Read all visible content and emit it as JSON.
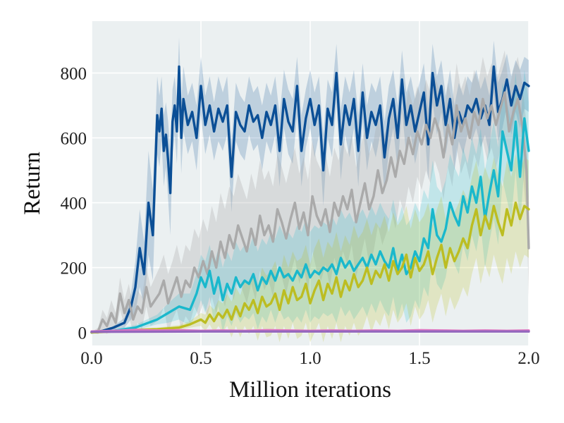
{
  "chart_data": {
    "type": "line",
    "title": "",
    "xlabel": "Million iterations",
    "ylabel": "Return",
    "xlim": [
      0.0,
      2.0
    ],
    "ylim": [
      -40,
      960
    ],
    "xticks": [
      0.0,
      0.5,
      1.0,
      1.5,
      2.0
    ],
    "xtick_labels": [
      "0.0",
      "0.5",
      "1.0",
      "1.5",
      "2.0"
    ],
    "yticks": [
      0,
      200,
      400,
      600,
      800
    ],
    "ytick_labels": [
      "0",
      "200",
      "400",
      "600",
      "800"
    ],
    "grid": true,
    "background": "#ebf0f1",
    "legend": "none",
    "series": [
      {
        "color": "#0b4f96",
        "band_opacity": 0.2,
        "x": [
          0.0,
          0.05,
          0.1,
          0.15,
          0.18,
          0.2,
          0.22,
          0.24,
          0.26,
          0.28,
          0.3,
          0.31,
          0.32,
          0.33,
          0.34,
          0.35,
          0.36,
          0.37,
          0.38,
          0.39,
          0.4,
          0.41,
          0.42,
          0.44,
          0.46,
          0.48,
          0.5,
          0.52,
          0.54,
          0.56,
          0.58,
          0.6,
          0.62,
          0.64,
          0.66,
          0.68,
          0.7,
          0.72,
          0.74,
          0.76,
          0.78,
          0.8,
          0.82,
          0.84,
          0.86,
          0.88,
          0.9,
          0.92,
          0.94,
          0.96,
          0.98,
          1.0,
          1.02,
          1.04,
          1.06,
          1.08,
          1.1,
          1.12,
          1.14,
          1.16,
          1.18,
          1.2,
          1.22,
          1.24,
          1.26,
          1.28,
          1.3,
          1.32,
          1.34,
          1.36,
          1.38,
          1.4,
          1.42,
          1.44,
          1.46,
          1.48,
          1.5,
          1.52,
          1.54,
          1.56,
          1.58,
          1.6,
          1.62,
          1.64,
          1.66,
          1.68,
          1.7,
          1.72,
          1.74,
          1.76,
          1.78,
          1.8,
          1.82,
          1.84,
          1.86,
          1.88,
          1.9,
          1.92,
          1.94,
          1.96,
          1.98,
          2.0
        ],
        "y": [
          0,
          5,
          15,
          30,
          80,
          140,
          260,
          180,
          400,
          300,
          670,
          620,
          690,
          560,
          610,
          530,
          430,
          650,
          700,
          620,
          820,
          600,
          720,
          640,
          680,
          600,
          760,
          640,
          700,
          620,
          690,
          650,
          700,
          480,
          680,
          640,
          620,
          700,
          650,
          670,
          600,
          680,
          640,
          700,
          560,
          720,
          650,
          620,
          760,
          560,
          660,
          720,
          640,
          700,
          500,
          690,
          640,
          800,
          580,
          700,
          640,
          720,
          560,
          740,
          600,
          680,
          640,
          700,
          540,
          660,
          720,
          600,
          780,
          640,
          700,
          620,
          680,
          740,
          580,
          800,
          700,
          760,
          640,
          720,
          600,
          680,
          640,
          700,
          680,
          720,
          660,
          700,
          640,
          820,
          680,
          720,
          780,
          700,
          760,
          720,
          770,
          760
        ],
        "band": [
          2,
          3,
          5,
          15,
          40,
          80,
          120,
          100,
          160,
          140,
          120,
          110,
          100,
          110,
          100,
          120,
          130,
          100,
          90,
          100,
          90,
          110,
          100,
          90,
          90,
          100,
          90,
          90,
          90,
          90,
          100,
          90,
          90,
          110,
          90,
          90,
          90,
          90,
          90,
          90,
          100,
          90,
          90,
          90,
          110,
          90,
          100,
          100,
          90,
          110,
          90,
          90,
          100,
          90,
          110,
          90,
          100,
          90,
          110,
          90,
          100,
          90,
          110,
          90,
          100,
          90,
          100,
          90,
          110,
          100,
          90,
          100,
          90,
          100,
          90,
          100,
          90,
          90,
          110,
          90,
          90,
          80,
          90,
          90,
          100,
          90,
          90,
          90,
          90,
          90,
          90,
          90,
          90,
          80,
          90,
          90,
          80,
          90,
          80,
          90,
          80,
          80
        ]
      },
      {
        "color": "#aaaaaa",
        "band_opacity": 0.3,
        "x": [
          0.0,
          0.03,
          0.05,
          0.07,
          0.09,
          0.11,
          0.13,
          0.15,
          0.17,
          0.19,
          0.21,
          0.23,
          0.25,
          0.27,
          0.29,
          0.31,
          0.33,
          0.35,
          0.37,
          0.39,
          0.41,
          0.43,
          0.45,
          0.47,
          0.49,
          0.51,
          0.53,
          0.55,
          0.57,
          0.59,
          0.61,
          0.63,
          0.65,
          0.67,
          0.69,
          0.71,
          0.73,
          0.75,
          0.77,
          0.79,
          0.81,
          0.83,
          0.85,
          0.87,
          0.89,
          0.91,
          0.93,
          0.95,
          0.97,
          0.99,
          1.01,
          1.03,
          1.05,
          1.07,
          1.09,
          1.11,
          1.13,
          1.15,
          1.17,
          1.19,
          1.21,
          1.23,
          1.25,
          1.27,
          1.29,
          1.31,
          1.33,
          1.35,
          1.37,
          1.39,
          1.41,
          1.43,
          1.45,
          1.47,
          1.49,
          1.51,
          1.53,
          1.55,
          1.57,
          1.59,
          1.61,
          1.63,
          1.65,
          1.67,
          1.69,
          1.71,
          1.73,
          1.75,
          1.77,
          1.79,
          1.81,
          1.83,
          1.85,
          1.87,
          1.89,
          1.91,
          1.93,
          1.95,
          1.97,
          1.99,
          2.0
        ],
        "y": [
          0,
          5,
          40,
          20,
          60,
          30,
          120,
          60,
          100,
          40,
          80,
          60,
          140,
          80,
          100,
          120,
          160,
          90,
          130,
          170,
          110,
          160,
          140,
          200,
          170,
          220,
          180,
          250,
          200,
          280,
          230,
          300,
          260,
          330,
          290,
          250,
          320,
          270,
          360,
          300,
          330,
          280,
          380,
          340,
          290,
          350,
          400,
          320,
          370,
          300,
          420,
          360,
          330,
          380,
          310,
          400,
          360,
          420,
          380,
          440,
          340,
          400,
          460,
          380,
          420,
          500,
          430,
          470,
          540,
          480,
          560,
          520,
          600,
          550,
          620,
          580,
          640,
          600,
          660,
          620,
          540,
          640,
          580,
          700,
          620,
          660,
          600,
          680,
          640,
          720,
          660,
          700,
          640,
          690,
          740,
          620,
          680,
          720,
          640,
          500,
          260
        ],
        "band": [
          2,
          10,
          30,
          25,
          40,
          30,
          50,
          40,
          50,
          40,
          50,
          50,
          60,
          60,
          70,
          80,
          80,
          90,
          90,
          100,
          100,
          110,
          110,
          120,
          120,
          130,
          130,
          140,
          140,
          150,
          150,
          150,
          160,
          160,
          160,
          160,
          170,
          170,
          170,
          170,
          170,
          170,
          170,
          170,
          170,
          170,
          170,
          170,
          170,
          170,
          170,
          170,
          170,
          170,
          170,
          170,
          170,
          170,
          170,
          170,
          170,
          170,
          170,
          170,
          170,
          170,
          160,
          160,
          160,
          160,
          150,
          150,
          150,
          150,
          140,
          140,
          140,
          140,
          130,
          130,
          130,
          130,
          130,
          130,
          130,
          130,
          130,
          130,
          130,
          130,
          130,
          130,
          130,
          130,
          130,
          130,
          130,
          130,
          130,
          140,
          150
        ]
      },
      {
        "color": "#1ab8cc",
        "band_opacity": 0.2,
        "x": [
          0.0,
          0.1,
          0.2,
          0.3,
          0.35,
          0.4,
          0.45,
          0.48,
          0.5,
          0.52,
          0.54,
          0.56,
          0.58,
          0.6,
          0.62,
          0.64,
          0.66,
          0.68,
          0.7,
          0.72,
          0.74,
          0.76,
          0.78,
          0.8,
          0.82,
          0.84,
          0.86,
          0.88,
          0.9,
          0.92,
          0.94,
          0.96,
          0.98,
          1.0,
          1.02,
          1.04,
          1.06,
          1.08,
          1.1,
          1.12,
          1.14,
          1.16,
          1.18,
          1.2,
          1.22,
          1.24,
          1.26,
          1.28,
          1.3,
          1.32,
          1.34,
          1.36,
          1.38,
          1.4,
          1.42,
          1.44,
          1.46,
          1.48,
          1.5,
          1.52,
          1.54,
          1.56,
          1.58,
          1.6,
          1.62,
          1.64,
          1.66,
          1.68,
          1.7,
          1.72,
          1.74,
          1.76,
          1.78,
          1.8,
          1.82,
          1.84,
          1.86,
          1.88,
          1.9,
          1.92,
          1.94,
          1.96,
          1.98,
          2.0
        ],
        "y": [
          0,
          5,
          15,
          40,
          60,
          80,
          70,
          120,
          170,
          140,
          190,
          120,
          170,
          100,
          150,
          120,
          170,
          140,
          160,
          150,
          180,
          130,
          170,
          150,
          190,
          160,
          200,
          170,
          180,
          160,
          190,
          170,
          210,
          170,
          190,
          180,
          200,
          190,
          210,
          180,
          230,
          200,
          220,
          190,
          210,
          230,
          200,
          240,
          210,
          250,
          220,
          200,
          260,
          190,
          240,
          180,
          200,
          250,
          220,
          290,
          260,
          380,
          300,
          280,
          320,
          400,
          360,
          330,
          420,
          370,
          450,
          400,
          480,
          350,
          430,
          500,
          420,
          620,
          560,
          500,
          650,
          480,
          660,
          560
        ],
        "band": [
          2,
          5,
          8,
          15,
          30,
          40,
          50,
          60,
          70,
          80,
          80,
          90,
          90,
          100,
          100,
          100,
          110,
          110,
          110,
          110,
          120,
          120,
          120,
          120,
          120,
          130,
          130,
          130,
          130,
          130,
          140,
          140,
          140,
          140,
          140,
          140,
          140,
          140,
          150,
          150,
          150,
          150,
          150,
          150,
          150,
          150,
          150,
          150,
          150,
          150,
          150,
          150,
          150,
          150,
          150,
          150,
          150,
          150,
          150,
          150,
          150,
          150,
          150,
          150,
          150,
          150,
          150,
          150,
          150,
          150,
          150,
          150,
          150,
          150,
          150,
          150,
          150,
          150,
          150,
          150,
          150,
          150,
          150,
          150
        ]
      },
      {
        "color": "#bcbd22",
        "band_opacity": 0.22,
        "x": [
          0.0,
          0.1,
          0.2,
          0.3,
          0.4,
          0.45,
          0.5,
          0.52,
          0.54,
          0.56,
          0.58,
          0.6,
          0.62,
          0.64,
          0.66,
          0.68,
          0.7,
          0.72,
          0.74,
          0.76,
          0.78,
          0.8,
          0.82,
          0.84,
          0.86,
          0.88,
          0.9,
          0.92,
          0.94,
          0.96,
          0.98,
          1.0,
          1.02,
          1.04,
          1.06,
          1.08,
          1.1,
          1.12,
          1.14,
          1.16,
          1.18,
          1.2,
          1.22,
          1.24,
          1.26,
          1.28,
          1.3,
          1.32,
          1.34,
          1.36,
          1.38,
          1.4,
          1.42,
          1.44,
          1.46,
          1.48,
          1.5,
          1.52,
          1.54,
          1.56,
          1.58,
          1.6,
          1.62,
          1.64,
          1.66,
          1.68,
          1.7,
          1.72,
          1.74,
          1.76,
          1.78,
          1.8,
          1.82,
          1.84,
          1.86,
          1.88,
          1.9,
          1.92,
          1.94,
          1.96,
          1.98,
          2.0
        ],
        "y": [
          0,
          3,
          8,
          10,
          15,
          25,
          40,
          30,
          55,
          35,
          60,
          45,
          70,
          40,
          80,
          50,
          90,
          70,
          100,
          60,
          110,
          80,
          90,
          120,
          70,
          130,
          90,
          140,
          100,
          110,
          150,
          90,
          130,
          160,
          100,
          150,
          120,
          170,
          110,
          160,
          130,
          180,
          140,
          160,
          200,
          150,
          190,
          170,
          210,
          160,
          220,
          180,
          200,
          240,
          170,
          230,
          190,
          210,
          250,
          180,
          230,
          270,
          200,
          260,
          220,
          250,
          290,
          260,
          330,
          380,
          300,
          360,
          320,
          390,
          340,
          300,
          380,
          330,
          400,
          350,
          390,
          380
        ],
        "band": [
          2,
          2,
          4,
          5,
          8,
          10,
          20,
          25,
          30,
          35,
          40,
          45,
          50,
          55,
          60,
          65,
          70,
          75,
          80,
          85,
          90,
          95,
          100,
          100,
          100,
          110,
          110,
          110,
          120,
          120,
          120,
          120,
          130,
          130,
          130,
          130,
          140,
          140,
          140,
          140,
          140,
          150,
          150,
          150,
          150,
          150,
          150,
          150,
          150,
          150,
          150,
          150,
          150,
          150,
          150,
          150,
          150,
          150,
          150,
          150,
          150,
          150,
          150,
          150,
          150,
          150,
          150,
          150,
          150,
          150,
          150,
          150,
          150,
          150,
          150,
          150,
          150,
          150,
          150,
          150,
          150,
          150
        ]
      },
      {
        "color": "#e377c2",
        "band_opacity": 0.2,
        "x": [
          0.0,
          0.1,
          0.2,
          0.3,
          0.4,
          0.5,
          0.6,
          0.7,
          0.8,
          0.9,
          1.0,
          1.1,
          1.2,
          1.3,
          1.4,
          1.5,
          1.6,
          1.7,
          1.8,
          1.9,
          2.0
        ],
        "y": [
          3,
          5,
          8,
          6,
          7,
          5,
          6,
          5,
          7,
          6,
          5,
          6,
          5,
          6,
          5,
          7,
          6,
          5,
          6,
          5,
          6
        ],
        "band": [
          3,
          3,
          4,
          4,
          4,
          4,
          4,
          4,
          4,
          4,
          4,
          4,
          4,
          4,
          4,
          4,
          4,
          4,
          4,
          4,
          4
        ]
      },
      {
        "color": "#9467bd",
        "band_opacity": 0.0,
        "x": [
          0.0,
          0.5,
          1.0,
          1.5,
          2.0
        ],
        "y": [
          2,
          3,
          3,
          3,
          3
        ],
        "band": [
          1,
          1,
          1,
          1,
          1
        ]
      }
    ]
  }
}
